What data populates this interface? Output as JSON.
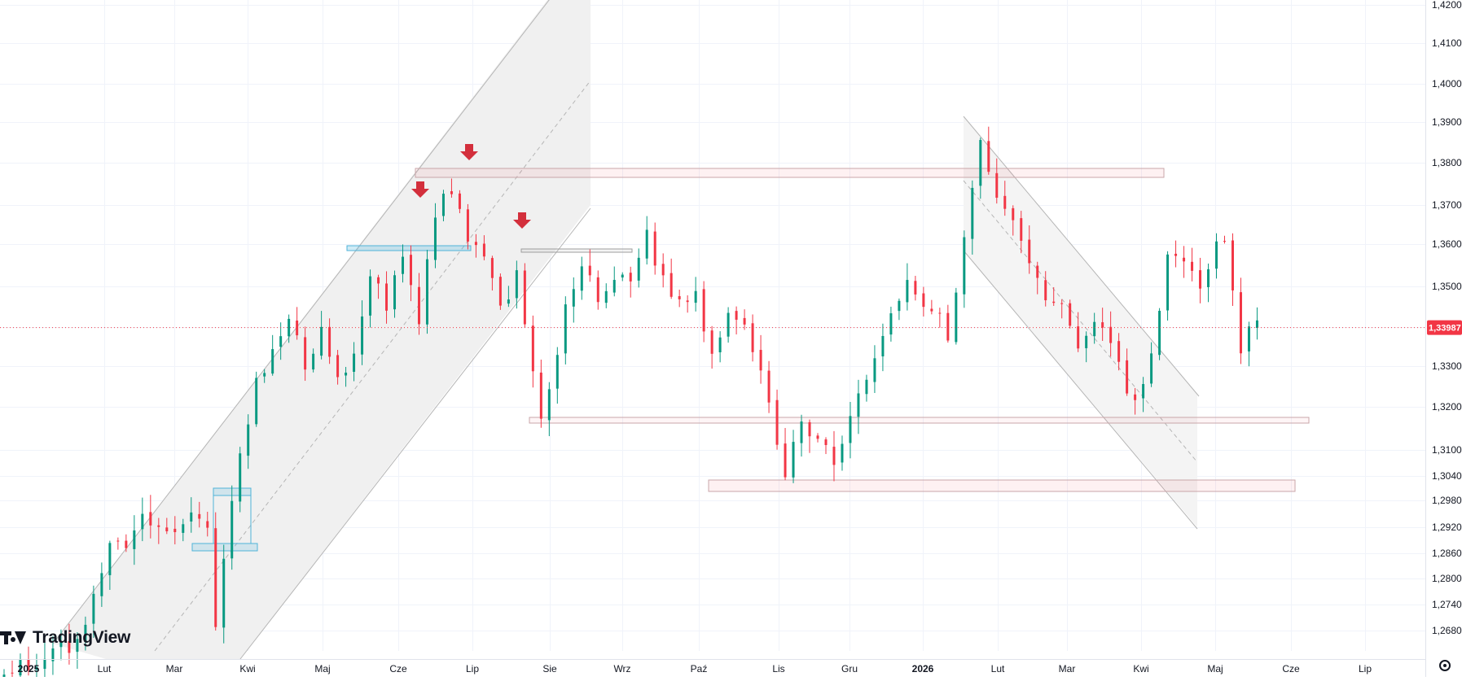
{
  "chart_data": {
    "type": "candlestick",
    "title": "",
    "xlabel": "",
    "ylabel": "",
    "ylim": [
      1.2635,
      1.4205
    ],
    "grid": true,
    "y_ticks": [
      "1,26800",
      "1,27400",
      "1,28000",
      "1,28600",
      "1,29200",
      "1,29800",
      "1,30400",
      "1,31000",
      "1,32000",
      "1,33000",
      "1,34000",
      "1,35000",
      "1,36000",
      "1,37000",
      "1,38000",
      "1,39000",
      "1,40000",
      "1,41000",
      "1,42000"
    ],
    "x_ticks": [
      {
        "label": "2025",
        "bold": true
      },
      {
        "label": "Lut",
        "bold": false
      },
      {
        "label": "Mar",
        "bold": false
      },
      {
        "label": "Kwi",
        "bold": false
      },
      {
        "label": "Maj",
        "bold": false
      },
      {
        "label": "Cze",
        "bold": false
      },
      {
        "label": "Lip",
        "bold": false
      },
      {
        "label": "Sie",
        "bold": false
      },
      {
        "label": "Wrz",
        "bold": false
      },
      {
        "label": "Paź",
        "bold": false
      },
      {
        "label": "Lis",
        "bold": false
      },
      {
        "label": "Gru",
        "bold": false
      },
      {
        "label": "2026",
        "bold": true
      },
      {
        "label": "Lut",
        "bold": false
      },
      {
        "label": "Mar",
        "bold": false
      },
      {
        "label": "Kwi",
        "bold": false
      },
      {
        "label": "Maj",
        "bold": false
      },
      {
        "label": "Cze",
        "bold": false
      },
      {
        "label": "Lip",
        "bold": false
      }
    ],
    "current_price": 1.33987,
    "current_price_label": "1,33987",
    "up_color": "#089981",
    "down_color": "#f23645",
    "price_path": [
      [
        0,
        1.257
      ],
      [
        6,
        1.262
      ],
      [
        10,
        1.265
      ],
      [
        12,
        1.275
      ],
      [
        14,
        1.29
      ],
      [
        16,
        1.289
      ],
      [
        18,
        1.295
      ],
      [
        20,
        1.294
      ],
      [
        22,
        1.29
      ],
      [
        24,
        1.294
      ],
      [
        26,
        1.29
      ],
      [
        27,
        1.271
      ],
      [
        28,
        1.284
      ],
      [
        30,
        1.31
      ],
      [
        32,
        1.325
      ],
      [
        34,
        1.333
      ],
      [
        36,
        1.342
      ],
      [
        38,
        1.331
      ],
      [
        40,
        1.338
      ],
      [
        42,
        1.326
      ],
      [
        44,
        1.332
      ],
      [
        46,
        1.354
      ],
      [
        48,
        1.345
      ],
      [
        50,
        1.356
      ],
      [
        52,
        1.342
      ],
      [
        54,
        1.368
      ],
      [
        56,
        1.374
      ],
      [
        58,
        1.362
      ],
      [
        60,
        1.357
      ],
      [
        62,
        1.344
      ],
      [
        64,
        1.354
      ],
      [
        66,
        1.328
      ],
      [
        67,
        1.318
      ],
      [
        68,
        1.325
      ],
      [
        70,
        1.344
      ],
      [
        72,
        1.356
      ],
      [
        74,
        1.348
      ],
      [
        76,
        1.352
      ],
      [
        78,
        1.353
      ],
      [
        80,
        1.365
      ],
      [
        81,
        1.355
      ],
      [
        83,
        1.348
      ],
      [
        86,
        1.347
      ],
      [
        88,
        1.334
      ],
      [
        90,
        1.343
      ],
      [
        92,
        1.339
      ],
      [
        94,
        1.329
      ],
      [
        96,
        1.312
      ],
      [
        97,
        1.304
      ],
      [
        99,
        1.316
      ],
      [
        101,
        1.313
      ],
      [
        103,
        1.307
      ],
      [
        104,
        1.312
      ],
      [
        106,
        1.323
      ],
      [
        108,
        1.333
      ],
      [
        110,
        1.342
      ],
      [
        112,
        1.352
      ],
      [
        114,
        1.347
      ],
      [
        116,
        1.343
      ],
      [
        117,
        1.338
      ],
      [
        118,
        1.348
      ],
      [
        120,
        1.376
      ],
      [
        121,
        1.386
      ],
      [
        123,
        1.371
      ],
      [
        125,
        1.367
      ],
      [
        127,
        1.357
      ],
      [
        129,
        1.348
      ],
      [
        131,
        1.344
      ],
      [
        133,
        1.334
      ],
      [
        135,
        1.341
      ],
      [
        137,
        1.338
      ],
      [
        139,
        1.325
      ],
      [
        140,
        1.32
      ],
      [
        142,
        1.334
      ],
      [
        144,
        1.357
      ],
      [
        146,
        1.355
      ],
      [
        148,
        1.349
      ],
      [
        150,
        1.36
      ],
      [
        151,
        1.36
      ],
      [
        152,
        1.351
      ],
      [
        153,
        1.335
      ],
      [
        154,
        1.34
      ]
    ],
    "n_candles": 155
  }
}
